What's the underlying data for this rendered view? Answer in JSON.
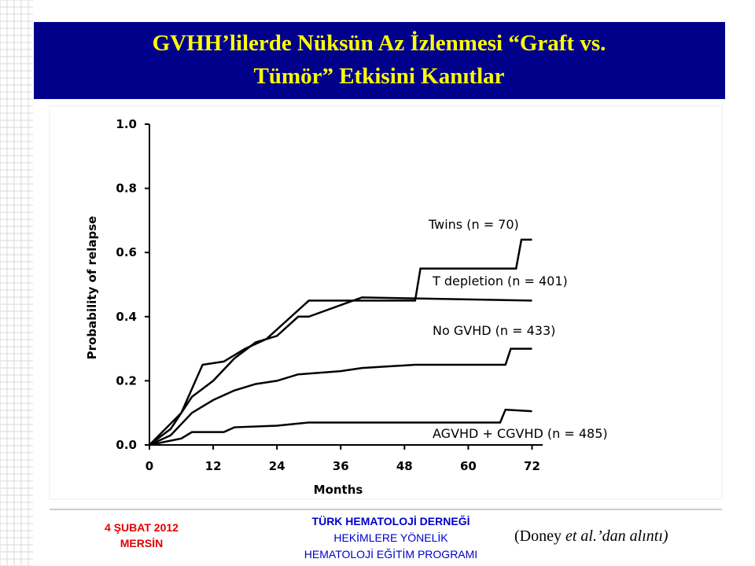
{
  "header": {
    "title": [
      "GVHH’lilerde Nüksün Az İzlenmesi “Graft vs.",
      "Tümör” Etkisini Kanıtlar"
    ]
  },
  "chart_data": {
    "type": "line",
    "xlabel": "Months",
    "ylabel": "Probability of relapse",
    "xlim": [
      0,
      74
    ],
    "ylim": [
      0,
      1
    ],
    "xticks": [
      0,
      12,
      24,
      36,
      48,
      60,
      72
    ],
    "yticks": [
      {
        "value": 0,
        "label": "0.0"
      },
      0.2,
      0.4,
      0.6,
      0.8,
      {
        "value": 1,
        "label": "1.0"
      }
    ],
    "series": [
      {
        "name": "Twins (n = 70)",
        "color": "#000000",
        "x": [
          0,
          6,
          10,
          14,
          18,
          22,
          26,
          30,
          50,
          51,
          69,
          70,
          72
        ],
        "values": [
          0,
          0.1,
          0.25,
          0.26,
          0.3,
          0.33,
          0.39,
          0.45,
          0.45,
          0.55,
          0.55,
          0.64,
          0.64
        ]
      },
      {
        "name": "T depletion (n = 401)",
        "color": "#000000",
        "x": [
          0,
          4,
          8,
          12,
          16,
          20,
          24,
          28,
          30,
          40,
          72
        ],
        "values": [
          0,
          0.05,
          0.15,
          0.2,
          0.27,
          0.32,
          0.34,
          0.4,
          0.4,
          0.46,
          0.45
        ]
      },
      {
        "name": "No GVHD (n = 433)",
        "color": "#000000",
        "x": [
          0,
          4,
          8,
          12,
          16,
          20,
          24,
          28,
          36,
          40,
          50,
          67,
          68,
          72
        ],
        "values": [
          0,
          0.03,
          0.1,
          0.14,
          0.17,
          0.19,
          0.2,
          0.22,
          0.23,
          0.24,
          0.25,
          0.25,
          0.3,
          0.3
        ]
      },
      {
        "name": "AGVHD + CGVHD (n = 485)",
        "color": "#000000",
        "x": [
          0,
          6,
          8,
          14,
          16,
          24,
          30,
          44,
          66,
          67,
          72
        ],
        "values": [
          0,
          0.02,
          0.04,
          0.04,
          0.055,
          0.06,
          0.07,
          0.07,
          0.07,
          0.11,
          0.105
        ]
      }
    ]
  },
  "footer": {
    "date": [
      "4 ŞUBAT 2012",
      "MERSİN"
    ],
    "organization": [
      "TÜRK HEMATOLOJİ DERNEĞİ",
      "HEKİMLERE YÖNELİK",
      "HEMATOLOJİ EĞİTİM PROGRAMI"
    ],
    "citation": [
      "(Doney ",
      "et al.",
      "’dan alıntı)"
    ]
  }
}
